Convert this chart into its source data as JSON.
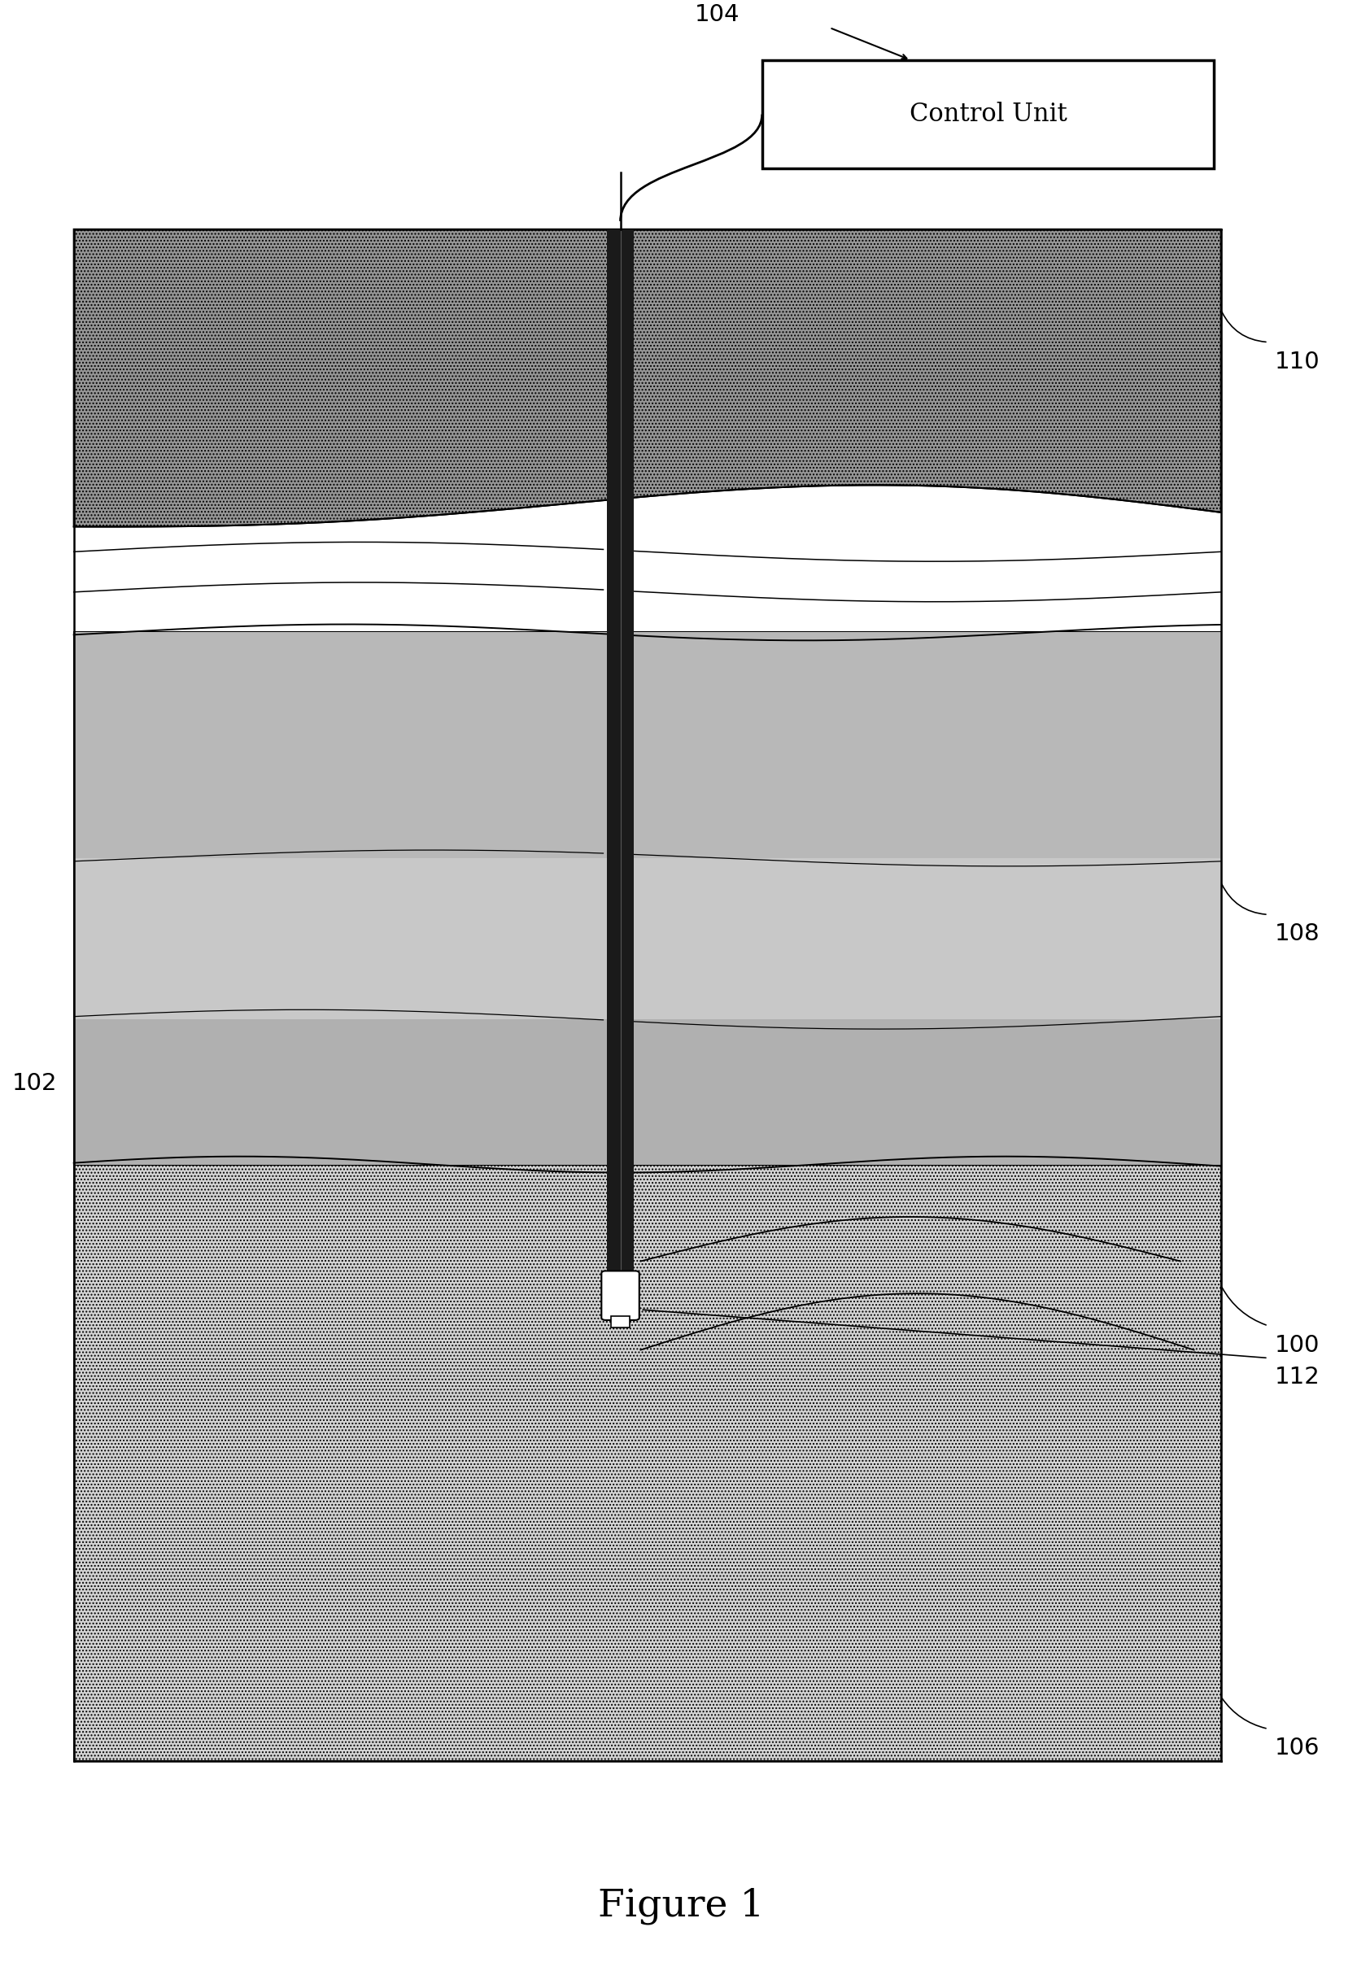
{
  "fig_width": 16.68,
  "fig_height": 24.44,
  "bg_color": "#ffffff",
  "figure_label": "Figure 1",
  "control_unit_label": "Control Unit",
  "label_104": "104",
  "label_110": "110",
  "label_108": "108",
  "label_102": "102",
  "label_100": "100",
  "label_112": "112",
  "label_106": "106",
  "layer_110_color": "#aaaaaa",
  "layer_108_color": "#c0c0c0",
  "layer_106_color": "#d8d8d8",
  "well_color": "#111111",
  "bg_color_white": "#ffffff"
}
